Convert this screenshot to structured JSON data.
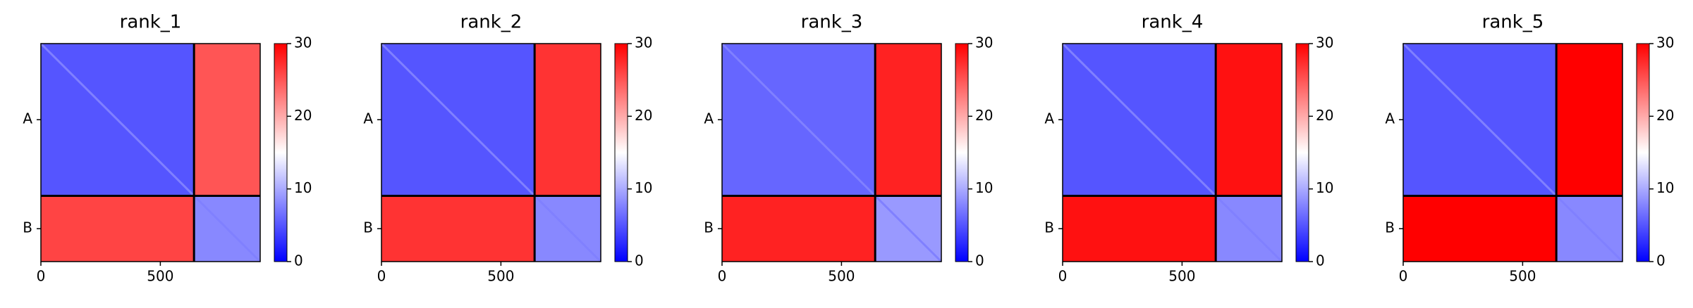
{
  "chart_data": [
    {
      "type": "heatmap",
      "title": "rank_1",
      "chains": [
        "A",
        "B"
      ],
      "chain_boundary": 641,
      "xlim": [
        0,
        918
      ],
      "xticks": [
        0,
        500
      ],
      "clim": [
        0,
        30
      ],
      "cticks": [
        0,
        10,
        20,
        30
      ],
      "colormap": "bwr",
      "values": [
        [
          5,
          25
        ],
        [
          26,
          8
        ]
      ]
    },
    {
      "type": "heatmap",
      "title": "rank_2",
      "chains": [
        "A",
        "B"
      ],
      "chain_boundary": 641,
      "xlim": [
        0,
        918
      ],
      "xticks": [
        0,
        500
      ],
      "clim": [
        0,
        30
      ],
      "cticks": [
        0,
        10,
        20,
        30
      ],
      "colormap": "bwr",
      "values": [
        [
          5,
          27
        ],
        [
          27,
          8
        ]
      ]
    },
    {
      "type": "heatmap",
      "title": "rank_3",
      "chains": [
        "A",
        "B"
      ],
      "chain_boundary": 641,
      "xlim": [
        0,
        918
      ],
      "xticks": [
        0,
        500
      ],
      "clim": [
        0,
        30
      ],
      "cticks": [
        0,
        10,
        20,
        30
      ],
      "colormap": "bwr",
      "values": [
        [
          6,
          28
        ],
        [
          28,
          9
        ]
      ]
    },
    {
      "type": "heatmap",
      "title": "rank_4",
      "chains": [
        "A",
        "B"
      ],
      "chain_boundary": 641,
      "xlim": [
        0,
        918
      ],
      "xticks": [
        0,
        500
      ],
      "clim": [
        0,
        30
      ],
      "cticks": [
        0,
        10,
        20,
        30
      ],
      "colormap": "bwr",
      "values": [
        [
          5,
          29
        ],
        [
          29,
          8
        ]
      ]
    },
    {
      "type": "heatmap",
      "title": "rank_5",
      "chains": [
        "A",
        "B"
      ],
      "chain_boundary": 641,
      "xlim": [
        0,
        918
      ],
      "xticks": [
        0,
        500
      ],
      "clim": [
        0,
        30
      ],
      "cticks": [
        0,
        10,
        20,
        30
      ],
      "colormap": "bwr",
      "values": [
        [
          5,
          30
        ],
        [
          30,
          8
        ]
      ]
    }
  ]
}
